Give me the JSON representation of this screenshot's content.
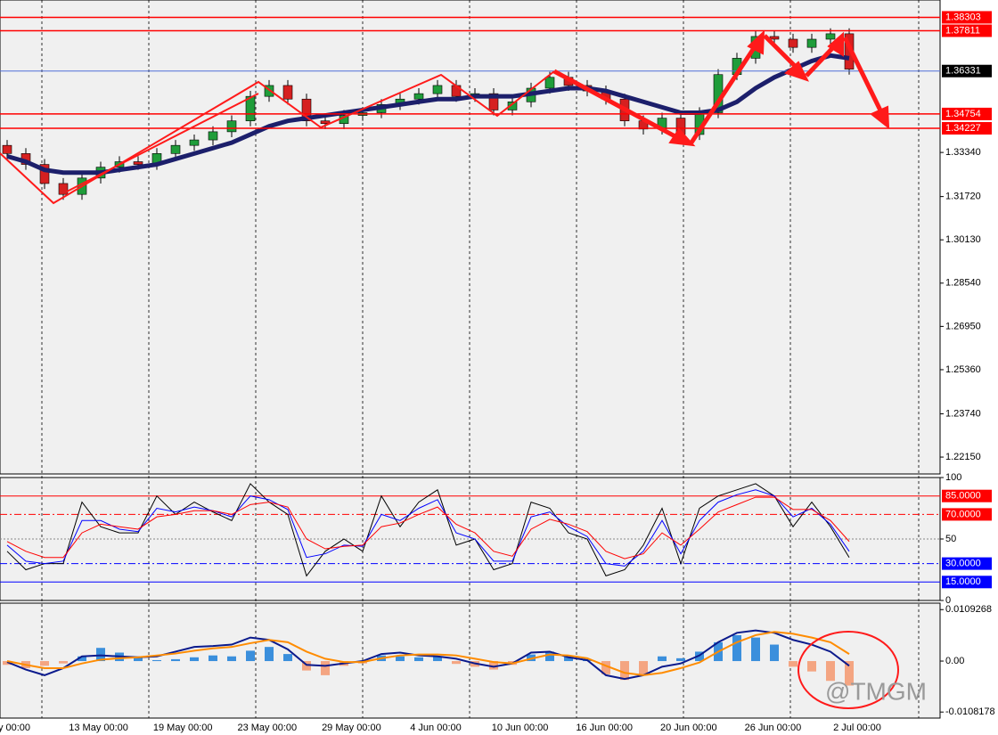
{
  "chart_data": [
    {
      "type": "candlestick",
      "open": [
        1.336,
        1.333,
        1.329,
        1.322,
        1.318,
        1.324,
        1.328,
        1.33,
        1.329,
        1.333,
        1.336,
        1.338,
        1.341,
        1.345,
        1.354,
        1.358,
        1.353,
        1.345,
        1.344,
        1.347,
        1.348,
        1.351,
        1.353,
        1.355,
        1.358,
        1.354,
        1.355,
        1.349,
        1.352,
        1.357,
        1.361,
        1.358,
        1.356,
        1.353,
        1.345,
        1.342,
        1.346,
        1.34,
        1.348,
        1.362,
        1.368,
        1.376,
        1.375,
        1.372,
        1.375,
        1.377
      ],
      "high": [
        1.338,
        1.335,
        1.331,
        1.324,
        1.326,
        1.33,
        1.332,
        1.332,
        1.335,
        1.338,
        1.34,
        1.343,
        1.347,
        1.356,
        1.36,
        1.36,
        1.355,
        1.347,
        1.349,
        1.35,
        1.353,
        1.355,
        1.357,
        1.36,
        1.36,
        1.357,
        1.357,
        1.354,
        1.359,
        1.363,
        1.363,
        1.36,
        1.358,
        1.355,
        1.347,
        1.348,
        1.348,
        1.35,
        1.364,
        1.37,
        1.378,
        1.378,
        1.377,
        1.377,
        1.379,
        1.379
      ],
      "low": [
        1.331,
        1.327,
        1.32,
        1.316,
        1.316,
        1.322,
        1.326,
        1.327,
        1.327,
        1.331,
        1.334,
        1.336,
        1.339,
        1.343,
        1.352,
        1.351,
        1.343,
        1.342,
        1.342,
        1.345,
        1.346,
        1.349,
        1.351,
        1.353,
        1.352,
        1.352,
        1.347,
        1.347,
        1.35,
        1.355,
        1.356,
        1.354,
        1.351,
        1.343,
        1.34,
        1.34,
        1.338,
        1.338,
        1.346,
        1.36,
        1.366,
        1.373,
        1.37,
        1.37,
        1.373,
        1.362
      ],
      "close": [
        1.333,
        1.329,
        1.322,
        1.318,
        1.324,
        1.328,
        1.33,
        1.329,
        1.333,
        1.336,
        1.338,
        1.341,
        1.345,
        1.354,
        1.358,
        1.353,
        1.345,
        1.344,
        1.347,
        1.348,
        1.351,
        1.353,
        1.355,
        1.358,
        1.354,
        1.355,
        1.349,
        1.352,
        1.357,
        1.361,
        1.358,
        1.356,
        1.353,
        1.345,
        1.342,
        1.346,
        1.34,
        1.348,
        1.362,
        1.368,
        1.376,
        1.375,
        1.372,
        1.375,
        1.377,
        1.364
      ],
      "ma": [
        1.332,
        1.33,
        1.327,
        1.326,
        1.326,
        1.326,
        1.327,
        1.328,
        1.329,
        1.331,
        1.333,
        1.335,
        1.337,
        1.34,
        1.343,
        1.345,
        1.346,
        1.347,
        1.348,
        1.349,
        1.35,
        1.351,
        1.352,
        1.353,
        1.353,
        1.354,
        1.354,
        1.354,
        1.355,
        1.356,
        1.357,
        1.357,
        1.356,
        1.354,
        1.352,
        1.35,
        1.348,
        1.348,
        1.349,
        1.352,
        1.357,
        1.361,
        1.364,
        1.367,
        1.369,
        1.368
      ],
      "ma_color": "#1c1f6b",
      "up_color": "#1f9d3a",
      "down_color": "#d62020",
      "ylim": [
        1.2153,
        1.3894
      ],
      "yticks": [
        {
          "value": 1.3334,
          "label": "1.33340"
        },
        {
          "value": 1.3172,
          "label": "1.31720"
        },
        {
          "value": 1.3013,
          "label": "1.30130"
        },
        {
          "value": 1.2854,
          "label": "1.28540"
        },
        {
          "value": 1.2695,
          "label": "1.26950"
        },
        {
          "value": 1.2536,
          "label": "1.25360"
        },
        {
          "value": 1.2374,
          "label": "1.23740"
        },
        {
          "value": 1.2215,
          "label": "1.22150"
        }
      ],
      "levels": [
        1.38303,
        1.37811,
        1.34754,
        1.34227
      ],
      "level_color": "#ff0000",
      "last_price": 1.36331,
      "last_price_color": "#4f6fd8"
    },
    {
      "type": "line",
      "series": [
        {
          "color": "#000000",
          "values": [
            40,
            25,
            30,
            30,
            80,
            60,
            55,
            55,
            85,
            70,
            80,
            72,
            65,
            95,
            80,
            70,
            20,
            40,
            50,
            40,
            85,
            60,
            80,
            90,
            45,
            50,
            25,
            30,
            80,
            75,
            55,
            50,
            20,
            25,
            45,
            75,
            30,
            75,
            85,
            90,
            95,
            85,
            60,
            80,
            60,
            35
          ]
        },
        {
          "color": "#0000ff",
          "values": [
            45,
            32,
            30,
            32,
            65,
            65,
            58,
            56,
            75,
            72,
            76,
            73,
            68,
            85,
            82,
            74,
            35,
            38,
            45,
            44,
            70,
            65,
            75,
            82,
            55,
            50,
            32,
            32,
            68,
            72,
            60,
            52,
            30,
            28,
            40,
            65,
            38,
            65,
            80,
            86,
            90,
            85,
            68,
            75,
            62,
            40
          ]
        },
        {
          "color": "#ff0000",
          "values": [
            48,
            40,
            35,
            35,
            55,
            62,
            60,
            58,
            68,
            70,
            73,
            73,
            70,
            78,
            80,
            76,
            50,
            42,
            44,
            45,
            60,
            63,
            70,
            76,
            62,
            55,
            40,
            36,
            58,
            66,
            62,
            56,
            40,
            34,
            38,
            55,
            45,
            58,
            72,
            78,
            84,
            84,
            74,
            74,
            65,
            48
          ]
        }
      ],
      "ylim": [
        0,
        100
      ],
      "yticks": [
        100,
        50,
        0
      ],
      "levels": [
        {
          "value": 85,
          "label": "85.0000",
          "color": "#ff0000",
          "style": "solid"
        },
        {
          "value": 70,
          "label": "70.0000",
          "color": "#ff0000",
          "style": "dashdot"
        },
        {
          "value": 30,
          "label": "30.0000",
          "color": "#0000ff",
          "style": "dashdot"
        },
        {
          "value": 15,
          "label": "15.0000",
          "color": "#0000ff",
          "style": "solid"
        }
      ],
      "midline": 50
    },
    {
      "type": "macd",
      "values": [
        -0.0008,
        -0.0015,
        -0.001,
        -0.0005,
        0.001,
        0.0028,
        0.0018,
        0.0008,
        0.0002,
        0.0004,
        0.0008,
        0.0012,
        0.001,
        0.0022,
        0.003,
        0.0015,
        -0.002,
        -0.003,
        -0.001,
        -0.0005,
        0.0012,
        0.001,
        0.0008,
        0.001,
        -0.0006,
        -0.0012,
        -0.0018,
        -0.0008,
        0.0014,
        0.002,
        0.001,
        0.0004,
        -0.0028,
        -0.004,
        -0.003,
        0.001,
        0.0006,
        0.002,
        0.004,
        0.0055,
        0.005,
        0.0035,
        -0.0012,
        -0.0022,
        -0.0042,
        -0.0052
      ],
      "up_color": "#3b8fdc",
      "down_color": "#f4a582",
      "series": [
        {
          "color": "#0b1a8c",
          "values": [
            -0.0002,
            -0.0018,
            -0.003,
            -0.0015,
            0.001,
            0.0012,
            0.001,
            0.0008,
            0.001,
            0.002,
            0.003,
            0.0032,
            0.0035,
            0.005,
            0.0045,
            0.0025,
            -0.0008,
            -0.001,
            -0.0005,
            0,
            0.0015,
            0.0018,
            0.0012,
            0.001,
            0.0005,
            -0.0005,
            -0.0012,
            -0.0005,
            0.0018,
            0.002,
            0.0008,
            0.0002,
            -0.003,
            -0.0038,
            -0.003,
            -0.0012,
            -0.0005,
            0.0012,
            0.004,
            0.006,
            0.0065,
            0.006,
            0.0045,
            0.0035,
            0.002,
            -0.001
          ]
        },
        {
          "color": "#ff8c00",
          "values": [
            0,
            -0.0008,
            -0.0015,
            -0.0015,
            -0.0005,
            0.0003,
            0.0006,
            0.0008,
            0.0012,
            0.0016,
            0.0022,
            0.0027,
            0.003,
            0.0038,
            0.0045,
            0.004,
            0.002,
            0.0005,
            -0.0002,
            -0.0002,
            0.0006,
            0.0012,
            0.0014,
            0.0014,
            0.0012,
            0.0005,
            -0.0002,
            -0.0005,
            0.0005,
            0.0014,
            0.0012,
            0.0006,
            -0.001,
            -0.0025,
            -0.003,
            -0.0025,
            -0.0015,
            -0.0003,
            0.002,
            0.004,
            0.0055,
            0.0062,
            0.0058,
            0.005,
            0.004,
            0.0015
          ]
        }
      ],
      "ylim": [
        -0.0121,
        0.0123
      ],
      "yticks": [
        0.0109268,
        {
          "value": 0,
          "label": "0.00"
        },
        -0.0108178
      ]
    }
  ],
  "x_labels": [
    "y 00:00",
    "13 May 00:00",
    "19 May 00:00",
    "23 May 00:00",
    "29 May 00:00",
    "4 Jun 00:00",
    "10 Jun 00:00",
    "16 Jun 00:00",
    "20 Jun 00:00",
    "26 Jun 00:00",
    "2 Jul 00:00"
  ],
  "watermark": "@TMGM"
}
